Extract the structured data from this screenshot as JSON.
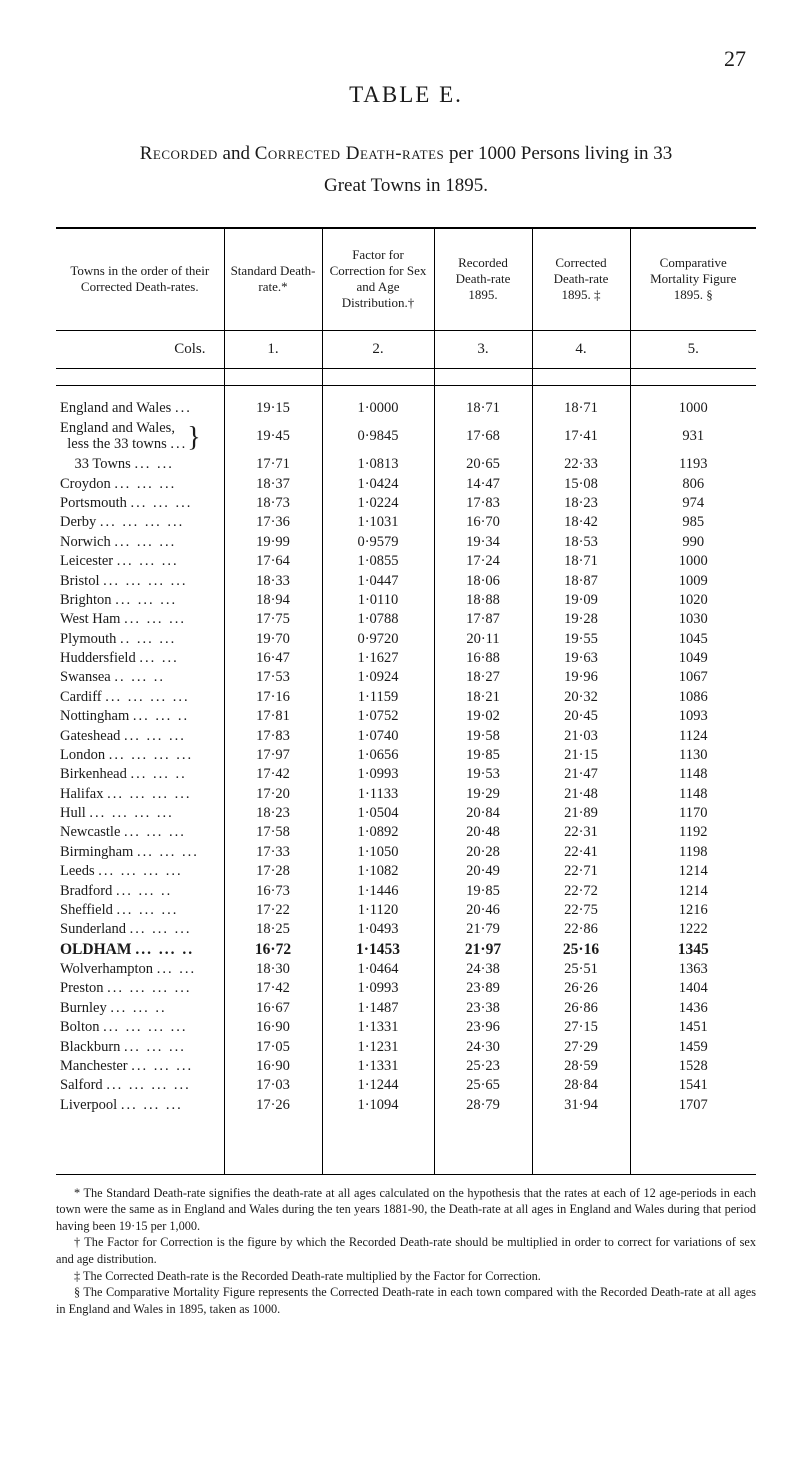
{
  "page_number": "27",
  "table_label": "TABLE E.",
  "intro_line1_pre": "Recorded",
  "intro_line1_mid1": " and ",
  "intro_line1_sc2": "Corrected Death-rates",
  "intro_line1_rest": " per 1000 Persons living in 33",
  "intro_line2": "Great Towns in 1895.",
  "headers": {
    "c0": "Towns in the order of their Corrected Death-rates.",
    "c1": "Standard Death-rate.*",
    "c2": "Factor for Correction for Sex and Age Distribution.†",
    "c3": "Recorded Death-rate 1895.",
    "c4": "Corrected Death-rate 1895. ‡",
    "c5": "Comparative Mortality Figure 1895. §"
  },
  "cols_label": "Cols.",
  "col_numbers": [
    "1.",
    "2.",
    "3.",
    "4.",
    "5."
  ],
  "rows": [
    {
      "name": "England and Wales",
      "dots": "...",
      "v": [
        "19·15",
        "1·0000",
        "18·71",
        "18·71",
        "1000"
      ],
      "bold": false
    },
    {
      "name": "England and Wales, less the 33 towns",
      "brace": true,
      "dots": "...",
      "v": [
        "19·45",
        "0·9845",
        "17·68",
        "17·41",
        "931"
      ],
      "bold": false
    },
    {
      "name": "33 Towns",
      "indent": true,
      "dots": "...  ...",
      "v": [
        "17·71",
        "1·0813",
        "20·65",
        "22·33",
        "1193"
      ],
      "bold": false
    },
    {
      "name": "Croydon",
      "dots": "...  ...  ...",
      "v": [
        "18·37",
        "1·0424",
        "14·47",
        "15·08",
        "806"
      ],
      "bold": false
    },
    {
      "name": "Portsmouth",
      "dots": "...  ...  ...",
      "v": [
        "18·73",
        "1·0224",
        "17·83",
        "18·23",
        "974"
      ],
      "bold": false
    },
    {
      "name": "Derby",
      "dots": "...  ...  ...  ...",
      "v": [
        "17·36",
        "1·1031",
        "16·70",
        "18·42",
        "985"
      ],
      "bold": false
    },
    {
      "name": "Norwich",
      "dots": "...  ...  ...",
      "v": [
        "19·99",
        "0·9579",
        "19·34",
        "18·53",
        "990"
      ],
      "bold": false
    },
    {
      "name": "Leicester",
      "dots": "...  ...  ...",
      "v": [
        "17·64",
        "1·0855",
        "17·24",
        "18·71",
        "1000"
      ],
      "bold": false
    },
    {
      "name": "Bristol",
      "dots": "...  ...  ...  ...",
      "v": [
        "18·33",
        "1·0447",
        "18·06",
        "18·87",
        "1009"
      ],
      "bold": false
    },
    {
      "name": "Brighton",
      "dots": "...  ...  ...",
      "v": [
        "18·94",
        "1·0110",
        "18·88",
        "19·09",
        "1020"
      ],
      "bold": false
    },
    {
      "name": "West Ham",
      "dots": "...  ...  ...",
      "v": [
        "17·75",
        "1·0788",
        "17·87",
        "19·28",
        "1030"
      ],
      "bold": false
    },
    {
      "name": "Plymouth",
      "dots": "..  ...  ...",
      "v": [
        "19·70",
        "0·9720",
        "20·11",
        "19·55",
        "1045"
      ],
      "bold": false
    },
    {
      "name": "Huddersfield",
      "dots": "...  ...",
      "v": [
        "16·47",
        "1·1627",
        "16·88",
        "19·63",
        "1049"
      ],
      "bold": false
    },
    {
      "name": "Swansea",
      "dots": "..  ...  ..",
      "v": [
        "17·53",
        "1·0924",
        "18·27",
        "19·96",
        "1067"
      ],
      "bold": false
    },
    {
      "name": "Cardiff",
      "dots": "...  ...  ...  ...",
      "v": [
        "17·16",
        "1·1159",
        "18·21",
        "20·32",
        "1086"
      ],
      "bold": false
    },
    {
      "name": "Nottingham",
      "dots": "...  ...  ..",
      "v": [
        "17·81",
        "1·0752",
        "19·02",
        "20·45",
        "1093"
      ],
      "bold": false
    },
    {
      "name": "Gateshead",
      "dots": "...  ...  ...",
      "v": [
        "17·83",
        "1·0740",
        "19·58",
        "21·03",
        "1124"
      ],
      "bold": false
    },
    {
      "name": "London",
      "dots": "...  ...  ...  ...",
      "v": [
        "17·97",
        "1·0656",
        "19·85",
        "21·15",
        "1130"
      ],
      "bold": false
    },
    {
      "name": "Birkenhead",
      "dots": "...  ...  ..",
      "v": [
        "17·42",
        "1·0993",
        "19·53",
        "21·47",
        "1148"
      ],
      "bold": false
    },
    {
      "name": "Halifax",
      "dots": "...  ...  ...  ...",
      "v": [
        "17·20",
        "1·1133",
        "19·29",
        "21·48",
        "1148"
      ],
      "bold": false
    },
    {
      "name": "Hull",
      "dots": "...  ...  ...  ...",
      "v": [
        "18·23",
        "1·0504",
        "20·84",
        "21·89",
        "1170"
      ],
      "bold": false
    },
    {
      "name": "Newcastle",
      "dots": "...  ...  ...",
      "v": [
        "17·58",
        "1·0892",
        "20·48",
        "22·31",
        "1192"
      ],
      "bold": false
    },
    {
      "name": "Birmingham",
      "dots": "...  ...  ...",
      "v": [
        "17·33",
        "1·1050",
        "20·28",
        "22·41",
        "1198"
      ],
      "bold": false
    },
    {
      "name": "Leeds",
      "dots": "...  ...  ...  ...",
      "v": [
        "17·28",
        "1·1082",
        "20·49",
        "22·71",
        "1214"
      ],
      "bold": false
    },
    {
      "name": "Bradford",
      "dots": "...  ...  ..",
      "v": [
        "16·73",
        "1·1446",
        "19·85",
        "22·72",
        "1214"
      ],
      "bold": false
    },
    {
      "name": "Sheffield",
      "dots": "...  ...  ...",
      "v": [
        "17·22",
        "1·1120",
        "20·46",
        "22·75",
        "1216"
      ],
      "bold": false
    },
    {
      "name": "Sunderland",
      "dots": "...  ...  ...",
      "v": [
        "18·25",
        "1·0493",
        "21·79",
        "22·86",
        "1222"
      ],
      "bold": false
    },
    {
      "name": "OLDHAM",
      "dots": "...  ...  ..",
      "v": [
        "16·72",
        "1·1453",
        "21·97",
        "25·16",
        "1345"
      ],
      "bold": true
    },
    {
      "name": "Wolverhampton",
      "dots": "...  ...",
      "v": [
        "18·30",
        "1·0464",
        "24·38",
        "25·51",
        "1363"
      ],
      "bold": false
    },
    {
      "name": "Preston",
      "dots": "...  ...  ...  ...",
      "v": [
        "17·42",
        "1·0993",
        "23·89",
        "26·26",
        "1404"
      ],
      "bold": false
    },
    {
      "name": "Burnley",
      "dots": "...  ...  ..",
      "v": [
        "16·67",
        "1·1487",
        "23·38",
        "26·86",
        "1436"
      ],
      "bold": false
    },
    {
      "name": "Bolton",
      "dots": "...  ...  ...  ...",
      "v": [
        "16·90",
        "1·1331",
        "23·96",
        "27·15",
        "1451"
      ],
      "bold": false
    },
    {
      "name": "Blackburn",
      "dots": "...  ...  ...",
      "v": [
        "17·05",
        "1·1231",
        "24·30",
        "27·29",
        "1459"
      ],
      "bold": false
    },
    {
      "name": "Manchester",
      "dots": "...  ...  ...",
      "v": [
        "16·90",
        "1·1331",
        "25·23",
        "28·59",
        "1528"
      ],
      "bold": false
    },
    {
      "name": "Salford",
      "dots": "...  ...  ...  ...",
      "v": [
        "17·03",
        "1·1244",
        "25·65",
        "28·84",
        "1541"
      ],
      "bold": false
    },
    {
      "name": "Liverpool",
      "dots": "...  ...  ...",
      "v": [
        "17·26",
        "1·1094",
        "28·79",
        "31·94",
        "1707"
      ],
      "bold": false
    }
  ],
  "footnotes": {
    "f1": "* The Standard Death-rate signifies the death-rate at all ages calculated on the hypothesis that the rates at each of 12 age-periods in each town were the same as in England and Wales during the ten years 1881-90, the Death-rate at all ages in England and Wales during that period having been 19·15 per 1,000.",
    "f2": "† The Factor for Correction is the figure by which the Recorded Death-rate should be multiplied in order to correct for variations of sex and age distribution.",
    "f3": "‡ The Corrected Death-rate is the Recorded Death-rate multiplied by the Factor for Correction.",
    "f4": "§ The Comparative Mortality Figure represents the Corrected Death-rate in each town compared with the Recorded Death-rate at all ages in England and Wales in 1895, taken as 1000."
  }
}
